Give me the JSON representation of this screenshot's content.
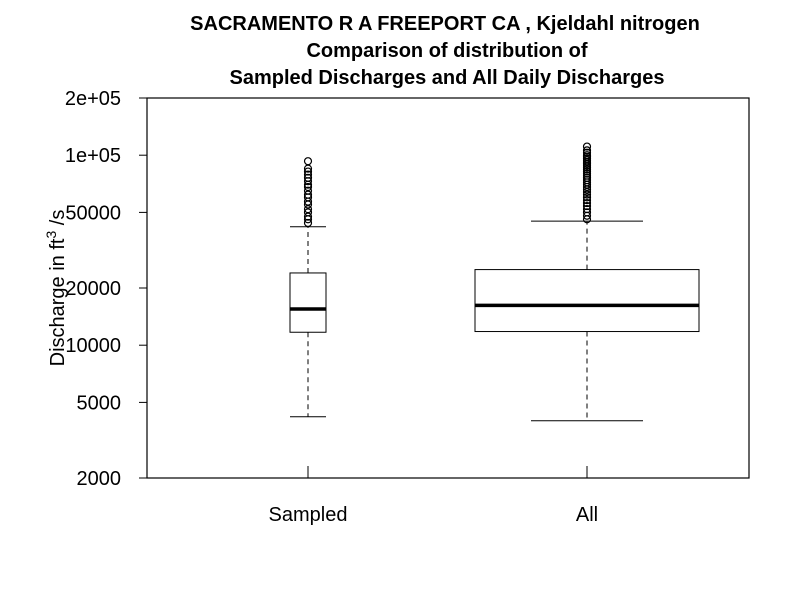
{
  "chart_data": {
    "type": "box",
    "title": "SACRAMENTO R A FREEPORT CA , Kjeldahl nitrogen",
    "subtitle_line1": "Comparison of distribution of",
    "subtitle_line2": "Sampled Discharges and All Daily Discharges",
    "ylabel": {
      "prefix": "Discharge in ft",
      "superscript": "3",
      "suffix": " /s"
    },
    "y_scale": "log",
    "ylim": [
      2000,
      200000
    ],
    "yticks": [
      {
        "value": 2000,
        "label": "2000"
      },
      {
        "value": 5000,
        "label": "5000"
      },
      {
        "value": 10000,
        "label": "10000"
      },
      {
        "value": 20000,
        "label": "20000"
      },
      {
        "value": 50000,
        "label": "50000"
      },
      {
        "value": 100000,
        "label": "1e+05"
      },
      {
        "value": 200000,
        "label": "2e+05"
      }
    ],
    "categories": [
      "Sampled",
      "All"
    ],
    "boxes": [
      {
        "name": "Sampled",
        "whisker_low": 4200,
        "q1": 11700,
        "median": 15500,
        "q3": 24000,
        "whisker_high": 42000,
        "outliers": [
          44000,
          46000,
          47500,
          50000,
          52000,
          55000,
          57000,
          60000,
          62000,
          65000,
          68000,
          70000,
          73000,
          76000,
          79000,
          82000,
          85000,
          93000
        ]
      },
      {
        "name": "All",
        "whisker_low": 4000,
        "q1": 11800,
        "median": 16200,
        "q3": 25000,
        "whisker_high": 45000,
        "outliers": [
          46000,
          48000,
          50000,
          52000,
          54000,
          56000,
          58000,
          60000,
          62000,
          64000,
          66000,
          68000,
          70000,
          72000,
          74000,
          76000,
          78000,
          80000,
          82000,
          84000,
          86000,
          88000,
          90000,
          92000,
          94000,
          96000,
          98000,
          100000,
          103000,
          106000,
          111000
        ]
      }
    ]
  }
}
